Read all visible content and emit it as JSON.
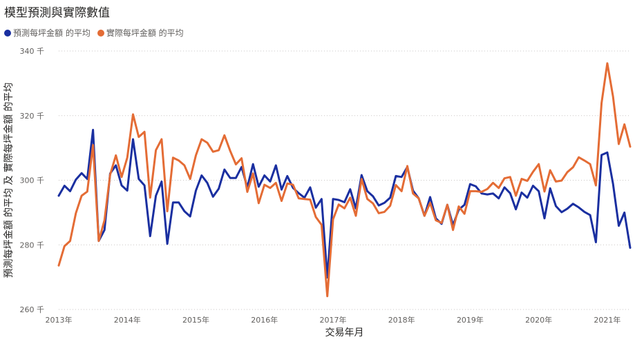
{
  "header": {
    "title": "模型預測與實際數值"
  },
  "colors": {
    "predicted": "#1a2fa0",
    "actual": "#e46c35"
  },
  "chart_data": {
    "type": "line",
    "title": "模型預測與實際數值",
    "xlabel": "交易年月",
    "ylabel": "預測每坪金額 的平均 及 實際每坪金額 的平均",
    "ylim": [
      260,
      340
    ],
    "y_ticks": [
      260,
      280,
      300,
      320,
      340
    ],
    "y_tick_labels": [
      "260 千",
      "280 千",
      "300 千",
      "320 千",
      "340 千"
    ],
    "x_tick_labels": [
      "2013年",
      "2014年",
      "2015年",
      "2016年",
      "2017年",
      "2018年",
      "2019年",
      "2020年",
      "2021年"
    ],
    "x_start": "2013-01",
    "x_end": "2021-05",
    "grid": true,
    "legend_position": "top-left",
    "series": [
      {
        "name": "預測每坪金額 的平均",
        "values": [
          295.2,
          298.3,
          296.6,
          300.2,
          302.2,
          300.4,
          315.6,
          281.2,
          284.6,
          302.1,
          304.6,
          298.4,
          296.8,
          312.7,
          300.4,
          298.4,
          282.7,
          295.2,
          299.6,
          280.3,
          293.1,
          293.1,
          290.4,
          288.8,
          296.8,
          301.5,
          299.2,
          294.9,
          297.4,
          303.3,
          300.7,
          300.7,
          304.1,
          297.8,
          305.0,
          298.0,
          301.5,
          299.6,
          304.6,
          297.1,
          301.3,
          297.6,
          296.0,
          294.6,
          297.8,
          291.5,
          294.2,
          269.9,
          294.2,
          293.9,
          293.2,
          297.2,
          291.3,
          301.6,
          296.6,
          295.0,
          292.2,
          293.0,
          294.6,
          301.3,
          301.0,
          304.1,
          296.8,
          294.4,
          289.0,
          294.8,
          288.2,
          286.5,
          292.4,
          286.1,
          290.9,
          292.4,
          298.8,
          298.1,
          295.9,
          295.6,
          295.9,
          294.4,
          297.8,
          296.0,
          291.0,
          296.2,
          294.6,
          298.3,
          296.6,
          288.2,
          297.5,
          292.0,
          290.1,
          291.2,
          292.7,
          291.6,
          290.2,
          289.2,
          280.8,
          307.8,
          308.6,
          298.9,
          285.9,
          290.0,
          279.1
        ]
      },
      {
        "name": "實際每坪金額 的平均",
        "values": [
          273.6,
          279.6,
          281.2,
          289.8,
          295.2,
          296.5,
          310.9,
          281.2,
          287.6,
          301.7,
          307.7,
          301.0,
          307.0,
          320.4,
          313.4,
          315.0,
          294.6,
          309.3,
          312.7,
          290.4,
          307.0,
          306.1,
          304.6,
          300.4,
          307.7,
          312.7,
          311.6,
          308.8,
          309.3,
          313.9,
          309.1,
          304.9,
          306.8,
          296.4,
          302.1,
          292.9,
          298.6,
          297.6,
          299.2,
          293.6,
          299.0,
          298.6,
          294.4,
          294.2,
          294.0,
          288.6,
          286.2,
          264.1,
          287.9,
          292.5,
          291.3,
          294.6,
          289.0,
          300.4,
          294.2,
          292.8,
          289.8,
          290.2,
          292.1,
          298.5,
          296.6,
          304.4,
          295.9,
          294.4,
          289.0,
          293.0,
          287.6,
          286.8,
          292.4,
          284.6,
          291.9,
          289.6,
          296.6,
          296.6,
          296.4,
          297.3,
          299.2,
          297.6,
          300.6,
          301.0,
          295.2,
          300.4,
          299.8,
          302.6,
          305.0,
          296.5,
          303.1,
          299.6,
          299.9,
          302.5,
          304.0,
          307.1,
          306.1,
          305.0,
          298.4,
          323.9,
          336.2,
          325.9,
          311.2,
          317.3,
          310.4
        ]
      }
    ]
  }
}
